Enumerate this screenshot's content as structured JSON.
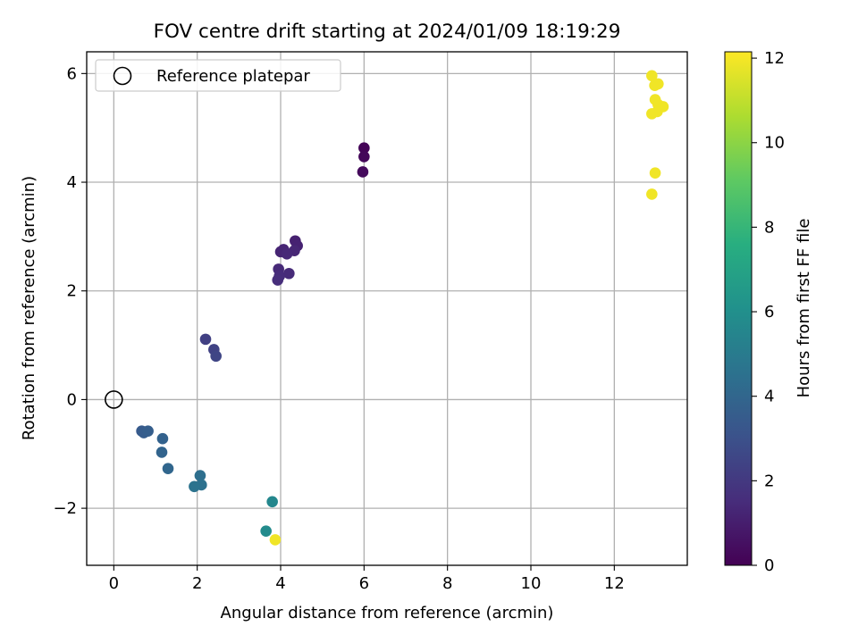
{
  "chart_data": {
    "type": "scatter",
    "title": "FOV centre drift starting at 2024/01/09 18:19:29",
    "xlabel": "Angular distance from reference (arcmin)",
    "ylabel": "Rotation from reference (arcmin)",
    "xlim": [
      -0.65,
      13.75
    ],
    "ylim": [
      -3.05,
      6.4
    ],
    "xticks": [
      0,
      2,
      4,
      6,
      8,
      10,
      12
    ],
    "yticks": [
      -2,
      0,
      2,
      4,
      6
    ],
    "ytick_labels": [
      "−2",
      "0",
      "2",
      "4",
      "6"
    ],
    "grid": true,
    "legend": {
      "placement": "top-left",
      "entries": [
        "Reference platepar"
      ]
    },
    "reference_point": {
      "x": 0,
      "y": 0
    },
    "colorbar": {
      "label": "Hours from first FF file",
      "range": [
        0,
        12.15
      ],
      "ticks": [
        0,
        2,
        4,
        6,
        8,
        10,
        12
      ],
      "colormap": "viridis"
    },
    "points": [
      {
        "x": 6.0,
        "y": 4.63,
        "c": 0.1
      },
      {
        "x": 6.0,
        "y": 4.47,
        "c": 0.2
      },
      {
        "x": 5.97,
        "y": 4.19,
        "c": 0.3
      },
      {
        "x": 4.35,
        "y": 2.92,
        "c": 1.1
      },
      {
        "x": 4.4,
        "y": 2.83,
        "c": 1.15
      },
      {
        "x": 4.0,
        "y": 2.72,
        "c": 1.2
      },
      {
        "x": 4.07,
        "y": 2.76,
        "c": 1.25
      },
      {
        "x": 4.33,
        "y": 2.74,
        "c": 1.3
      },
      {
        "x": 4.15,
        "y": 2.68,
        "c": 1.35
      },
      {
        "x": 3.95,
        "y": 2.4,
        "c": 1.4
      },
      {
        "x": 4.2,
        "y": 2.32,
        "c": 1.45
      },
      {
        "x": 3.97,
        "y": 2.27,
        "c": 1.5
      },
      {
        "x": 3.93,
        "y": 2.2,
        "c": 1.55
      },
      {
        "x": 2.2,
        "y": 1.11,
        "c": 2.3
      },
      {
        "x": 2.4,
        "y": 0.92,
        "c": 2.4
      },
      {
        "x": 2.45,
        "y": 0.8,
        "c": 2.5
      },
      {
        "x": 0.67,
        "y": -0.58,
        "c": 3.4
      },
      {
        "x": 0.72,
        "y": -0.61,
        "c": 3.5
      },
      {
        "x": 0.82,
        "y": -0.58,
        "c": 3.6
      },
      {
        "x": 1.17,
        "y": -0.72,
        "c": 3.8
      },
      {
        "x": 1.15,
        "y": -0.97,
        "c": 3.9
      },
      {
        "x": 1.3,
        "y": -1.27,
        "c": 4.0
      },
      {
        "x": 2.07,
        "y": -1.4,
        "c": 4.4
      },
      {
        "x": 2.1,
        "y": -1.57,
        "c": 4.5
      },
      {
        "x": 1.93,
        "y": -1.6,
        "c": 4.6
      },
      {
        "x": 3.8,
        "y": -1.88,
        "c": 5.6
      },
      {
        "x": 3.65,
        "y": -2.42,
        "c": 5.8
      },
      {
        "x": 3.87,
        "y": -2.58,
        "c": 11.9
      },
      {
        "x": 12.9,
        "y": 5.96,
        "c": 11.9
      },
      {
        "x": 12.97,
        "y": 5.78,
        "c": 11.9
      },
      {
        "x": 13.05,
        "y": 5.81,
        "c": 11.9
      },
      {
        "x": 12.98,
        "y": 5.52,
        "c": 11.9
      },
      {
        "x": 13.05,
        "y": 5.43,
        "c": 11.9
      },
      {
        "x": 13.17,
        "y": 5.39,
        "c": 11.9
      },
      {
        "x": 13.03,
        "y": 5.3,
        "c": 11.9
      },
      {
        "x": 12.9,
        "y": 5.26,
        "c": 11.9
      },
      {
        "x": 12.98,
        "y": 4.17,
        "c": 11.9
      },
      {
        "x": 12.9,
        "y": 3.78,
        "c": 11.9
      }
    ]
  }
}
